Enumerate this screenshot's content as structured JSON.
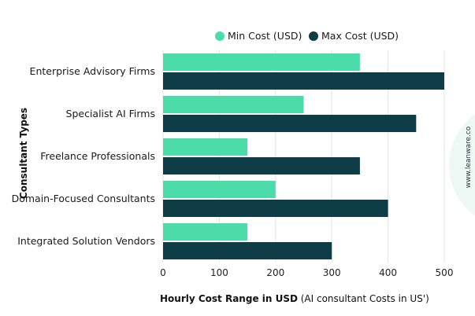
{
  "chart_data": {
    "type": "bar",
    "orientation": "horizontal",
    "categories": [
      "Enterprise Advisory Firms",
      "Specialist AI Firms",
      "Freelance Professionals",
      "Domain-Focused Consultants",
      "Integrated Solution Vendors"
    ],
    "series": [
      {
        "name": "Min Cost (USD)",
        "color": "#4cdcaa",
        "values": [
          350,
          250,
          150,
          200,
          150
        ]
      },
      {
        "name": "Max Cost (USD)",
        "color": "#0f3d47",
        "values": [
          500,
          450,
          350,
          400,
          300
        ]
      }
    ],
    "xlabel_bold": "Hourly Cost Range in USD",
    "xlabel_normal": " (AI consultant Costs in US')",
    "ylabel": "Consultant Types",
    "xlim": [
      0,
      500
    ],
    "xticks": [
      "0",
      "100",
      "200",
      "300",
      "400",
      "500"
    ],
    "grid": true,
    "legend_position": "top"
  },
  "watermark": "www.leanware.co",
  "colors": {
    "grid": "#e3e3e3",
    "watermark_bg": "#eef8f4"
  }
}
